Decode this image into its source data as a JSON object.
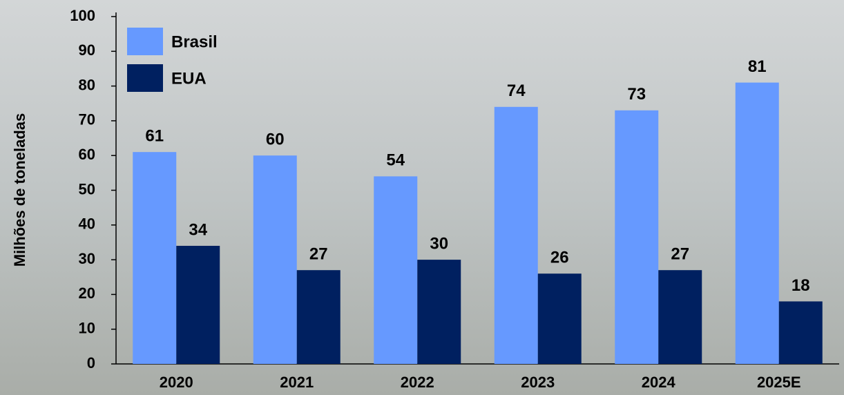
{
  "chart_data": {
    "type": "bar",
    "y_label": "Milhões de toneladas",
    "categories": [
      "2020",
      "2021",
      "2022",
      "2023",
      "2024",
      "2025E"
    ],
    "series": [
      {
        "name": "Brasil",
        "color": "#6699ff",
        "values": [
          61,
          60,
          54,
          74,
          73,
          81
        ]
      },
      {
        "name": "EUA",
        "color": "#002060",
        "values": [
          34,
          27,
          30,
          26,
          27,
          18
        ]
      }
    ],
    "ylim": [
      0,
      100
    ],
    "yticks": [
      0,
      10,
      20,
      30,
      40,
      50,
      60,
      70,
      80,
      90,
      100
    ],
    "legend": "upper left"
  }
}
